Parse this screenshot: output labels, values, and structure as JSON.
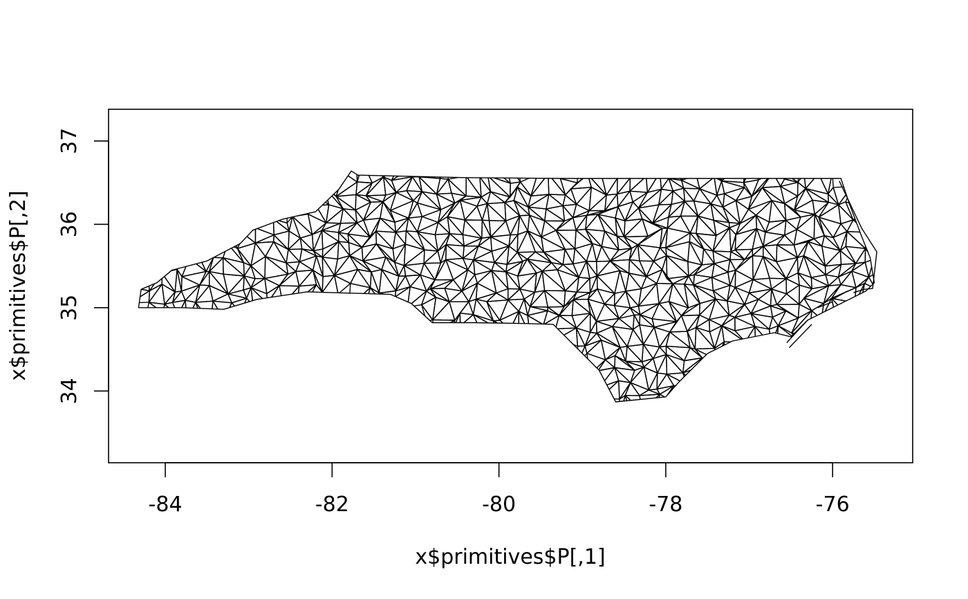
{
  "chart_data": {
    "type": "mesh",
    "title": "",
    "xlabel": "x$primitives$P[,1]",
    "ylabel": "x$primitives$P[,2]",
    "xlim": [
      -84.68,
      -75.04
    ],
    "ylim": [
      33.14,
      37.38
    ],
    "x_ticks": [
      {
        "value": -84,
        "label": "-84"
      },
      {
        "value": -82,
        "label": "-82"
      },
      {
        "value": -80,
        "label": "-80"
      },
      {
        "value": -78,
        "label": "-78"
      },
      {
        "value": -76,
        "label": "-76"
      }
    ],
    "y_ticks": [
      {
        "value": 34,
        "label": "34"
      },
      {
        "value": 35,
        "label": "35"
      },
      {
        "value": 36,
        "label": "36"
      },
      {
        "value": 37,
        "label": "37"
      }
    ],
    "grid": false,
    "legend": "none",
    "line_color": "#000000",
    "outline": [
      [
        -84.32,
        35.0
      ],
      [
        -84.29,
        35.22
      ],
      [
        -84.1,
        35.3
      ],
      [
        -83.92,
        35.45
      ],
      [
        -83.5,
        35.56
      ],
      [
        -83.1,
        35.77
      ],
      [
        -82.95,
        35.93
      ],
      [
        -82.6,
        36.06
      ],
      [
        -82.2,
        36.15
      ],
      [
        -81.92,
        36.42
      ],
      [
        -81.77,
        36.64
      ],
      [
        -81.69,
        36.59
      ],
      [
        -80.4,
        36.56
      ],
      [
        -79.2,
        36.55
      ],
      [
        -78.0,
        36.55
      ],
      [
        -76.9,
        36.55
      ],
      [
        -75.9,
        36.55
      ],
      [
        -75.8,
        36.25
      ],
      [
        -75.65,
        35.85
      ],
      [
        -75.55,
        35.6
      ],
      [
        -75.5,
        35.3
      ],
      [
        -75.6,
        35.2
      ],
      [
        -76.0,
        35.0
      ],
      [
        -76.3,
        34.85
      ],
      [
        -76.5,
        34.65
      ],
      [
        -76.7,
        34.7
      ],
      [
        -77.2,
        34.6
      ],
      [
        -77.5,
        34.45
      ],
      [
        -77.85,
        34.1
      ],
      [
        -78.0,
        33.93
      ],
      [
        -78.6,
        33.87
      ],
      [
        -78.8,
        34.25
      ],
      [
        -79.35,
        34.8
      ],
      [
        -79.7,
        34.81
      ],
      [
        -80.3,
        34.82
      ],
      [
        -80.8,
        34.82
      ],
      [
        -81.05,
        35.05
      ],
      [
        -81.3,
        35.16
      ],
      [
        -82.3,
        35.19
      ],
      [
        -82.9,
        35.1
      ],
      [
        -83.3,
        34.98
      ],
      [
        -83.8,
        35.0
      ],
      [
        -84.32,
        35.0
      ]
    ],
    "islands": [
      [
        [
          -75.92,
          36.52
        ],
        [
          -75.65,
          35.95
        ],
        [
          -75.47,
          35.67
        ],
        [
          -75.52,
          35.23
        ],
        [
          -75.62,
          35.22
        ],
        [
          -75.75,
          35.18
        ]
      ],
      [
        [
          -76.0,
          35.1
        ],
        [
          -75.82,
          35.2
        ]
      ],
      [
        [
          -76.18,
          35.0
        ],
        [
          -76.0,
          35.07
        ]
      ],
      [
        [
          -76.55,
          34.58
        ],
        [
          -76.3,
          34.85
        ]
      ],
      [
        [
          -76.52,
          34.52
        ],
        [
          -76.25,
          34.8
        ]
      ]
    ]
  }
}
